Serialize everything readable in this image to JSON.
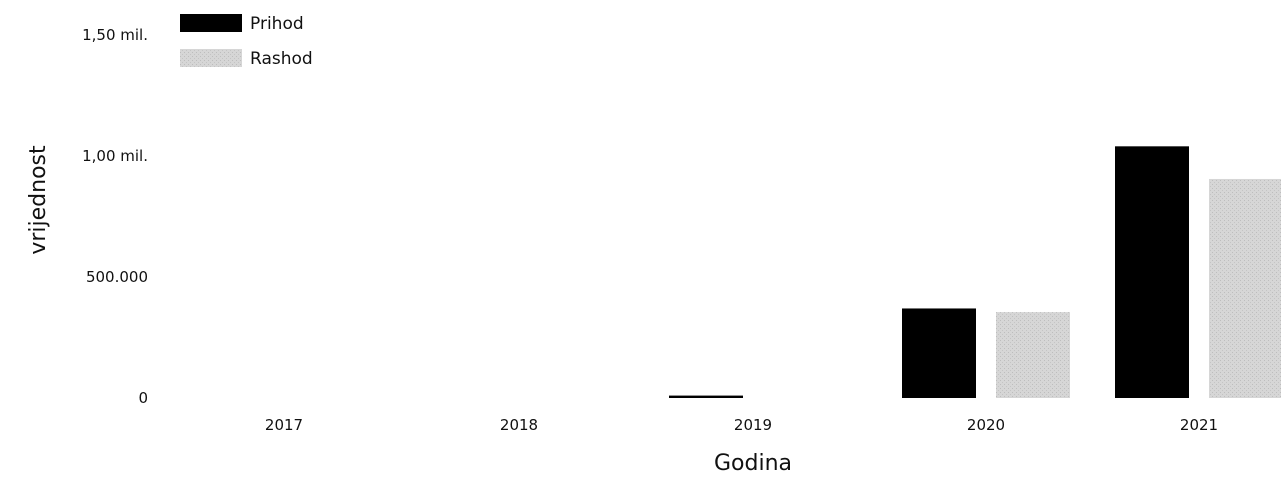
{
  "chart_data": {
    "type": "bar",
    "title": "",
    "xlabel": "Godina",
    "ylabel": "vrijednost",
    "categories": [
      "2017",
      "2018",
      "2019",
      "2020",
      "2021"
    ],
    "series": [
      {
        "name": "Prihod",
        "color": "#000000",
        "values": [
          0,
          0,
          10000,
          370000,
          1040000
        ]
      },
      {
        "name": "Rashod",
        "color": "#d2d2d2",
        "values": [
          0,
          0,
          0,
          355000,
          905000
        ]
      }
    ],
    "ylim": [
      0,
      1500000
    ],
    "yticks": [
      {
        "value": 0,
        "label": "0"
      },
      {
        "value": 500000,
        "label": "500.000"
      },
      {
        "value": 1000000,
        "label": "1,00 mil."
      },
      {
        "value": 1500000,
        "label": "1,50 mil."
      }
    ],
    "grid": false,
    "legend_position": "top-left"
  }
}
